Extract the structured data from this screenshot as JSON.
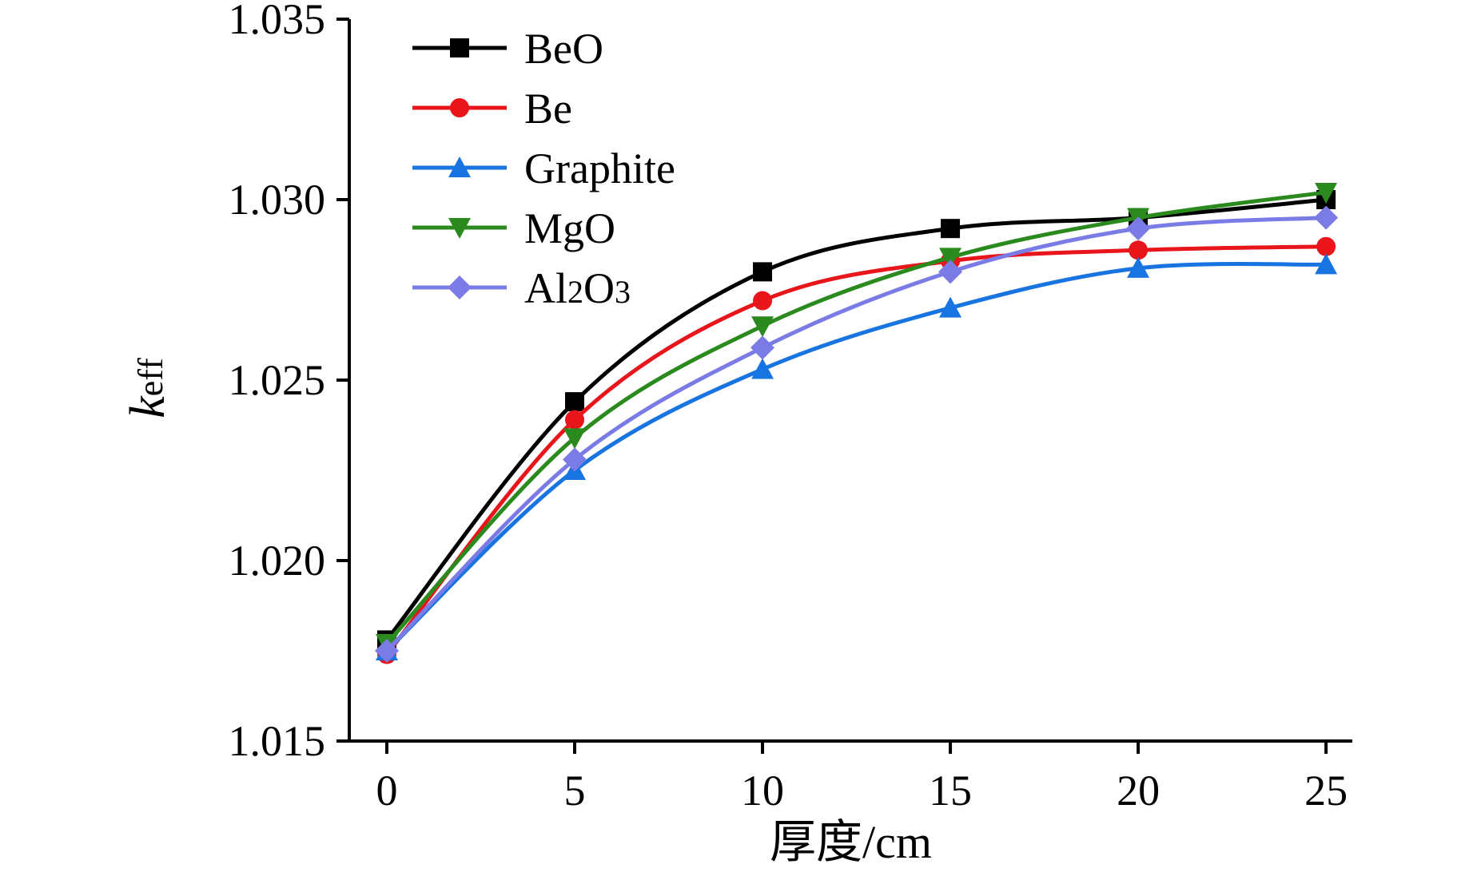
{
  "chart_data": {
    "type": "line",
    "title": "",
    "xlabel": "厚度/cm",
    "ylabel": {
      "main": "k",
      "sub": "eff"
    },
    "x": [
      0,
      5,
      10,
      15,
      20,
      25
    ],
    "x_ticks": [
      "0",
      "5",
      "10",
      "15",
      "20",
      "25"
    ],
    "y_ticks": [
      "1.015",
      "1.020",
      "1.025",
      "1.030",
      "1.035"
    ],
    "xlim": [
      -1,
      25.7
    ],
    "ylim": [
      1.015,
      1.035
    ],
    "grid": false,
    "legend_position": "top-left",
    "series": [
      {
        "name": "BeO",
        "label_main": "BeO",
        "label_sub": "",
        "label_tail": "",
        "color": "#000000",
        "marker": "square",
        "values": [
          1.0178,
          1.0244,
          1.028,
          1.0292,
          1.0295,
          1.03
        ]
      },
      {
        "name": "Be",
        "label_main": "Be",
        "label_sub": "",
        "label_tail": "",
        "color": "#e8151b",
        "marker": "circle",
        "values": [
          1.0174,
          1.0239,
          1.0272,
          1.0283,
          1.0286,
          1.0287
        ]
      },
      {
        "name": "Graphite",
        "label_main": "Graphite",
        "label_sub": "",
        "label_tail": "",
        "color": "#1874e0",
        "marker": "triangle-up",
        "values": [
          1.0175,
          1.0225,
          1.0253,
          1.027,
          1.0281,
          1.0282
        ]
      },
      {
        "name": "MgO",
        "label_main": "MgO",
        "label_sub": "",
        "label_tail": "",
        "color": "#2a8a1e",
        "marker": "triangle-down",
        "values": [
          1.0177,
          1.0234,
          1.0265,
          1.0284,
          1.0295,
          1.0302
        ]
      },
      {
        "name": "Al2O3",
        "label_main": "Al",
        "label_sub": "2",
        "label_tail": "O3",
        "color": "#7b7be6",
        "marker": "diamond",
        "values": [
          1.0175,
          1.0228,
          1.0259,
          1.028,
          1.0292,
          1.0295
        ]
      }
    ]
  }
}
